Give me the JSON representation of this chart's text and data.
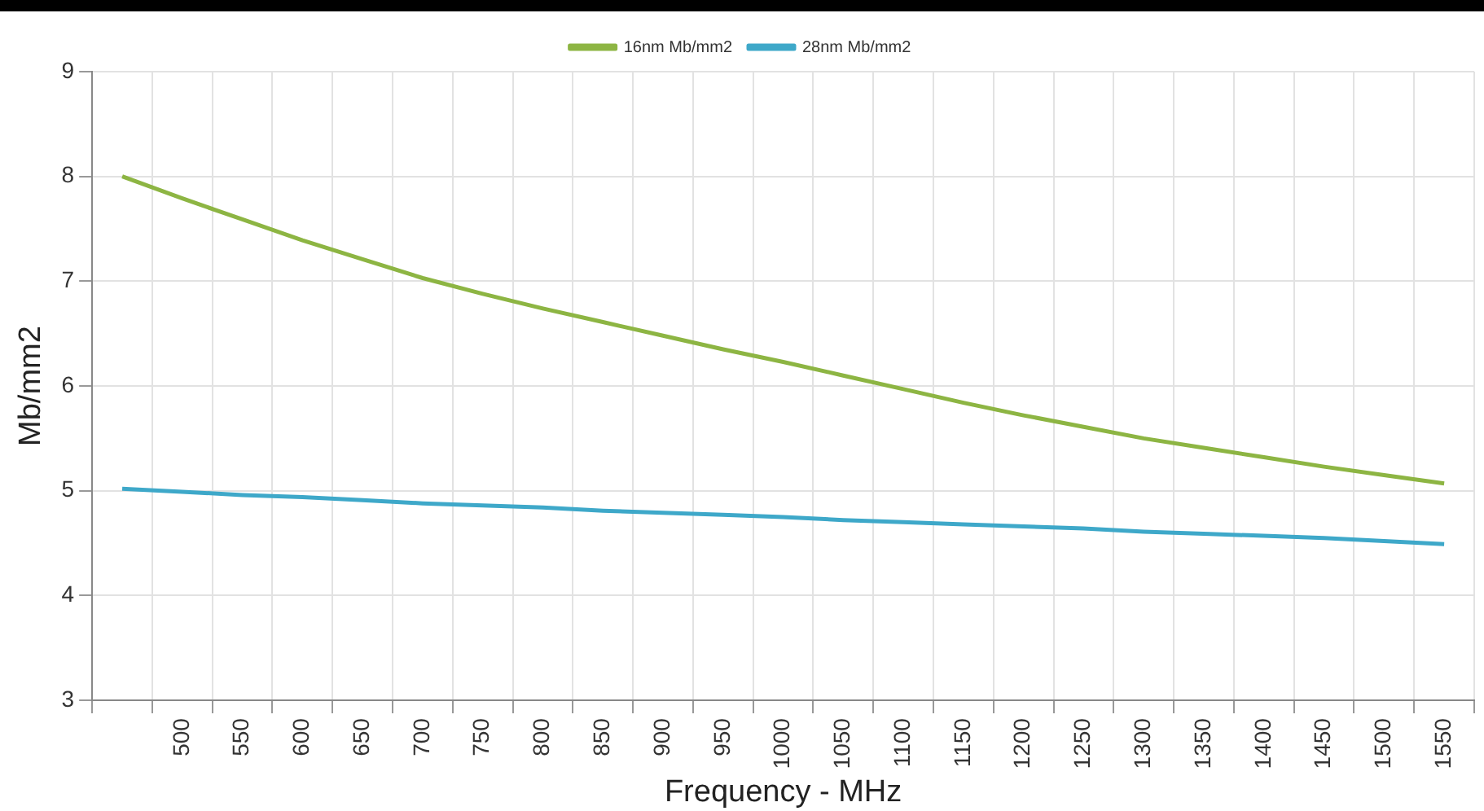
{
  "chart_data": {
    "type": "line",
    "xlabel": "Frequency - MHz",
    "ylabel": "Mb/mm2",
    "categories": [
      null,
      "500",
      "550",
      "600",
      "650",
      "700",
      "750",
      "800",
      "850",
      "900",
      "950",
      "1000",
      "1050",
      "1100",
      "1150",
      "1200",
      "1250",
      "1300",
      "1350",
      "1400",
      "1450",
      "1500",
      "1550"
    ],
    "series": [
      {
        "name": "16nm Mb/mm2",
        "color": "#8db543",
        "values": [
          8.0,
          7.79,
          7.59,
          7.39,
          7.21,
          7.03,
          6.88,
          6.74,
          6.61,
          6.48,
          6.35,
          6.23,
          6.1,
          5.97,
          5.84,
          5.72,
          5.61,
          5.5,
          5.41,
          5.32,
          5.23,
          5.15,
          5.07
        ]
      },
      {
        "name": "28nm Mb/mm2",
        "color": "#3ea8c9",
        "values": [
          5.02,
          4.99,
          4.96,
          4.94,
          4.91,
          4.88,
          4.86,
          4.84,
          4.81,
          4.79,
          4.77,
          4.75,
          4.72,
          4.7,
          4.68,
          4.66,
          4.64,
          4.61,
          4.59,
          4.57,
          4.55,
          4.52,
          4.49
        ]
      }
    ],
    "ylim": [
      3,
      9
    ],
    "yticks": [
      3,
      4,
      5,
      6,
      7,
      8,
      9
    ],
    "grid": true,
    "legend": "top",
    "marker": "none",
    "line_style": "solid"
  }
}
